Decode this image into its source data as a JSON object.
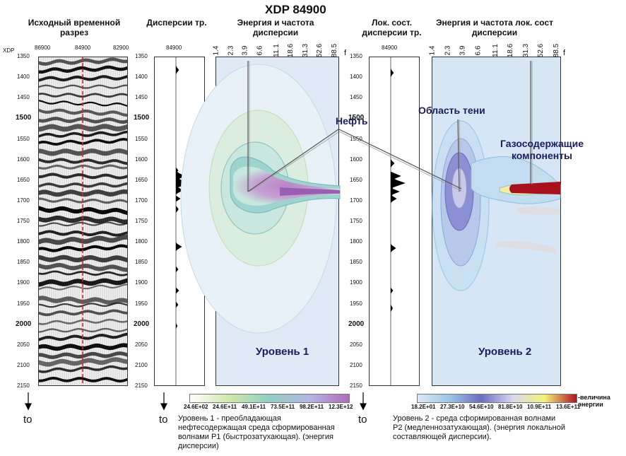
{
  "title": "XDP 84900",
  "xdp_axis_label": "XDP",
  "headers": {
    "seismic": "Исходный временной разрез",
    "dispersion": "Дисперсии тр.",
    "energy1": "Энергия и частота дисперсии",
    "local_dispersion": "Лок. сост. дисперсии тр.",
    "energy2": "Энергия и частота лок. сост дисперсии"
  },
  "seismic_top_ticks": [
    "86900",
    "84900",
    "82900"
  ],
  "trace_label": "84900",
  "depth_ticks": [
    "1350",
    "1400",
    "1450",
    "1500",
    "1550",
    "1600",
    "1650",
    "1700",
    "1750",
    "1800",
    "1850",
    "1900",
    "1950",
    "2000",
    "2050",
    "2100",
    "2150"
  ],
  "depth_ticks_bold": [
    "1500",
    "2000"
  ],
  "freq_ticks": [
    "1.4",
    "2.3",
    "3.9",
    "6.6",
    "11.1",
    "18.6",
    "31.3",
    "52.6",
    "88.5"
  ],
  "freq_axis_label": "f",
  "level1_label": "Уровень 1",
  "level2_label": "Уровень 2",
  "annotations": {
    "oil": "Нефть",
    "shadow": "Область тени",
    "gas": "Газосодержащие компоненты"
  },
  "colorbar1_ticks": [
    "24.6E+02",
    "24.6E+11",
    "49.1E+11",
    "73.5E+11",
    "98.2E+11",
    "12.3E+12"
  ],
  "colorbar2_ticks": [
    "18.2E+01",
    "27.3E+10",
    "54.6E+10",
    "81.8E+10",
    "10.9E+11",
    "13.6E+11"
  ],
  "colorbar2_unit": "-величина энергии",
  "to_labels": [
    "to",
    "to",
    "to"
  ],
  "caption1": "Уровень 1 - преобладающая нефтесодержащая среда сформированная волнами P1 (быстрозатухающая). (энергия дисперсии)",
  "caption2": "Уровень 2 - среда сформированная волнами P2 (медленнозатухающая). (энергия локальной составляющей дисперсии).",
  "colors": {
    "colorbar1": [
      "#ffffff",
      "#cfe7a8",
      "#8fcfc4",
      "#b4b6e2",
      "#b06bbd"
    ],
    "colorbar2": [
      "#dde9f6",
      "#9ac6e6",
      "#6c6cc0",
      "#d8d8ee",
      "#f3f27a",
      "#b01020"
    ]
  }
}
